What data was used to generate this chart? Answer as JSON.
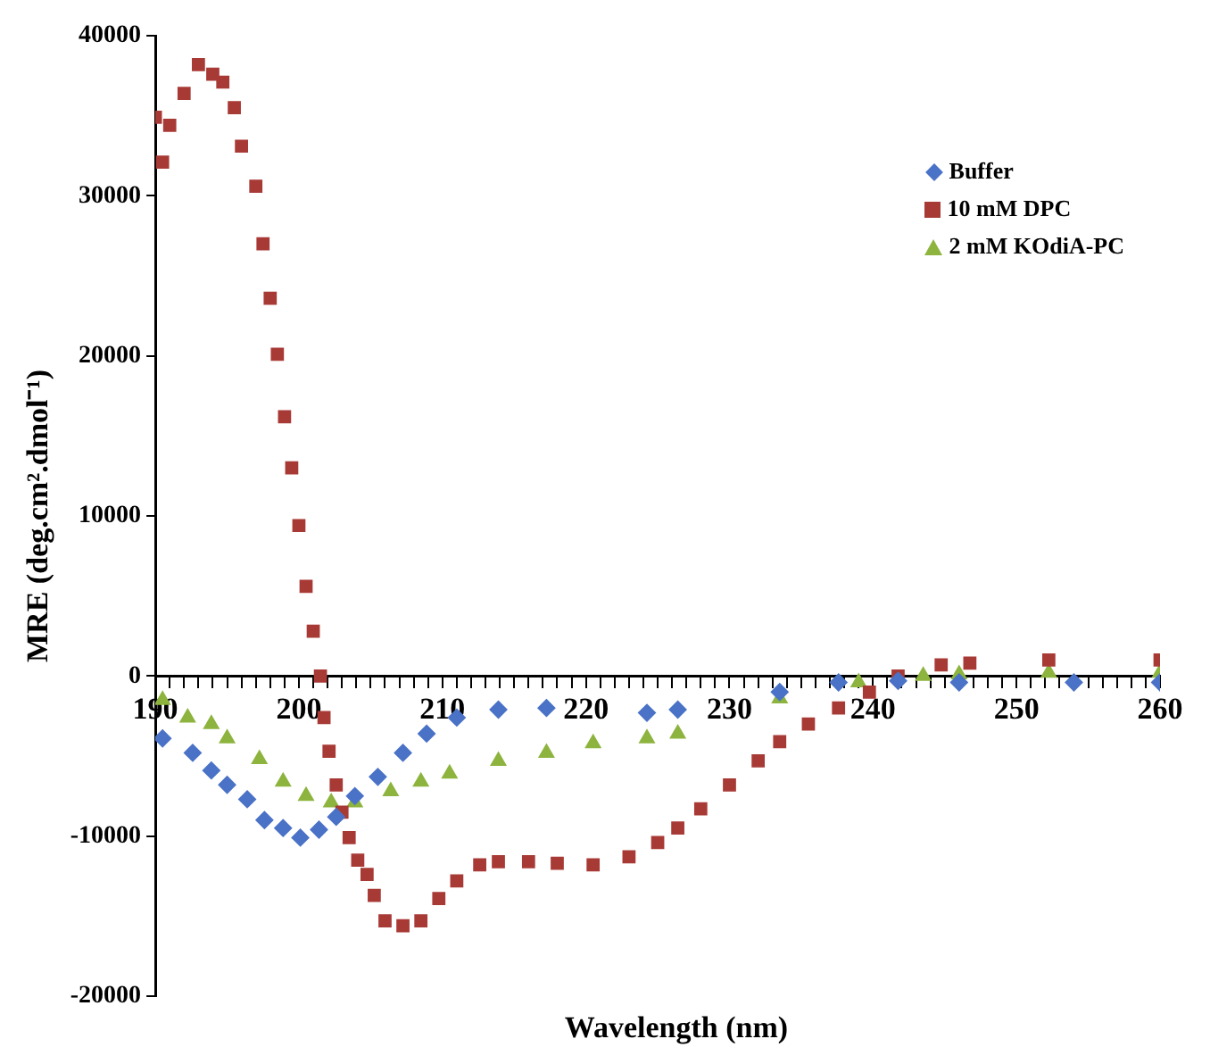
{
  "chart_data": {
    "type": "scatter",
    "xlabel": "Wavelength (nm)",
    "ylabel": "MRE (deg.cm².dmol⁻¹)",
    "xlim": [
      190,
      260
    ],
    "ylim": [
      -20000,
      40000
    ],
    "xticks": [
      190,
      {
        "value": 191,
        "label": null
      },
      {
        "value": 192,
        "label": null
      },
      {
        "value": 193,
        "label": null
      },
      {
        "value": 194,
        "label": null
      },
      {
        "value": 195,
        "label": null
      },
      {
        "value": 196,
        "label": null
      },
      {
        "value": 197,
        "label": null
      },
      {
        "value": 198,
        "label": null
      },
      {
        "value": 199,
        "label": null
      },
      200,
      {
        "value": 201,
        "label": null
      },
      {
        "value": 202,
        "label": null
      },
      {
        "value": 203,
        "label": null
      },
      {
        "value": 204,
        "label": null
      },
      {
        "value": 205,
        "label": null
      },
      {
        "value": 206,
        "label": null
      },
      {
        "value": 207,
        "label": null
      },
      {
        "value": 208,
        "label": null
      },
      {
        "value": 209,
        "label": null
      },
      210,
      {
        "value": 211,
        "label": null
      },
      {
        "value": 212,
        "label": null
      },
      {
        "value": 213,
        "label": null
      },
      {
        "value": 214,
        "label": null
      },
      {
        "value": 215,
        "label": null
      },
      {
        "value": 216,
        "label": null
      },
      {
        "value": 217,
        "label": null
      },
      {
        "value": 218,
        "label": null
      },
      {
        "value": 219,
        "label": null
      },
      220,
      {
        "value": 221,
        "label": null
      },
      {
        "value": 222,
        "label": null
      },
      {
        "value": 223,
        "label": null
      },
      {
        "value": 224,
        "label": null
      },
      {
        "value": 225,
        "label": null
      },
      {
        "value": 226,
        "label": null
      },
      {
        "value": 227,
        "label": null
      },
      {
        "value": 228,
        "label": null
      },
      {
        "value": 229,
        "label": null
      },
      230,
      {
        "value": 231,
        "label": null
      },
      {
        "value": 232,
        "label": null
      },
      {
        "value": 233,
        "label": null
      },
      {
        "value": 234,
        "label": null
      },
      {
        "value": 235,
        "label": null
      },
      {
        "value": 236,
        "label": null
      },
      {
        "value": 237,
        "label": null
      },
      {
        "value": 238,
        "label": null
      },
      {
        "value": 239,
        "label": null
      },
      240,
      {
        "value": 241,
        "label": null
      },
      {
        "value": 242,
        "label": null
      },
      {
        "value": 243,
        "label": null
      },
      {
        "value": 244,
        "label": null
      },
      {
        "value": 245,
        "label": null
      },
      {
        "value": 246,
        "label": null
      },
      {
        "value": 247,
        "label": null
      },
      {
        "value": 248,
        "label": null
      },
      {
        "value": 249,
        "label": null
      },
      250,
      {
        "value": 251,
        "label": null
      },
      {
        "value": 252,
        "label": null
      },
      {
        "value": 253,
        "label": null
      },
      {
        "value": 254,
        "label": null
      },
      {
        "value": 255,
        "label": null
      },
      {
        "value": 256,
        "label": null
      },
      {
        "value": 257,
        "label": null
      },
      {
        "value": 258,
        "label": null
      },
      {
        "value": 259,
        "label": null
      },
      260
    ],
    "yticks": [
      -20000,
      -10000,
      0,
      10000,
      20000,
      30000,
      40000
    ],
    "grid": false,
    "legend": "top right",
    "series": [
      {
        "name": "Buffer",
        "color": "#4a72c6",
        "marker": "diamond",
        "x": [
          190.5,
          192.6,
          193.9,
          195,
          196.4,
          197.6,
          198.9,
          200.1,
          201.4,
          202.6,
          203.9,
          205.5,
          207.25,
          208.9,
          211,
          213.9,
          217.25,
          224.25,
          226.4,
          233.5,
          237.6,
          241.75,
          246,
          254,
          260
        ],
        "values": [
          -3900,
          -4800,
          -5900,
          -6800,
          -7700,
          -9000,
          -9500,
          -10100,
          -9600,
          -8800,
          -7500,
          -6300,
          -4800,
          -3600,
          -2600,
          -2100,
          -2000,
          -2300,
          -2100,
          -1000,
          -400,
          -300,
          -400,
          -400,
          -400
        ]
      },
      {
        "name": "10 mM DPC",
        "color": "#a83a36",
        "marker": "square",
        "x": [
          190,
          190.5,
          191,
          192,
          193,
          194,
          194.7,
          195.5,
          196,
          197,
          197.5,
          198,
          198.5,
          199,
          199.5,
          200,
          200.5,
          201,
          201.5,
          201.75,
          202.1,
          202.6,
          203,
          203.5,
          204.1,
          204.75,
          205.25,
          206,
          207.25,
          208.5,
          209.75,
          211,
          212.6,
          213.9,
          216,
          218,
          220.5,
          223,
          225,
          226.4,
          228,
          230,
          232,
          233.5,
          235.5,
          237.6,
          239.75,
          241.75,
          244.75,
          246.75,
          252.25,
          260
        ],
        "values": [
          34900,
          32100,
          34400,
          36400,
          38200,
          37600,
          37100,
          35500,
          33100,
          30600,
          27000,
          23600,
          20100,
          16200,
          13000,
          9400,
          5600,
          2800,
          0,
          -2600,
          -4700,
          -6800,
          -8500,
          -10100,
          -11500,
          -12400,
          -13700,
          -15300,
          -15600,
          -15300,
          -13900,
          -12800,
          -11800,
          -11600,
          -11600,
          -11700,
          -11800,
          -11300,
          -10400,
          -9500,
          -8300,
          -6800,
          -5300,
          -4100,
          -3000,
          -2000,
          -1000,
          0,
          700,
          800,
          1000,
          1000
        ]
      },
      {
        "name": "2 mM KOdiA-PC",
        "color": "#8db43e",
        "marker": "triangle",
        "x": [
          190.5,
          192.25,
          193.9,
          195,
          197.25,
          198.9,
          200.5,
          202.25,
          203.9,
          206.4,
          208.5,
          210.5,
          213.9,
          217.25,
          220.5,
          224.25,
          226.4,
          233.5,
          239,
          243.5,
          246,
          252.25,
          260
        ],
        "values": [
          -1500,
          -2600,
          -3000,
          -3900,
          -5200,
          -6600,
          -7500,
          -7900,
          -7900,
          -7200,
          -6600,
          -6100,
          -5300,
          -4800,
          -4200,
          -3900,
          -3600,
          -1400,
          -400,
          0,
          100,
          200,
          200
        ]
      }
    ]
  }
}
